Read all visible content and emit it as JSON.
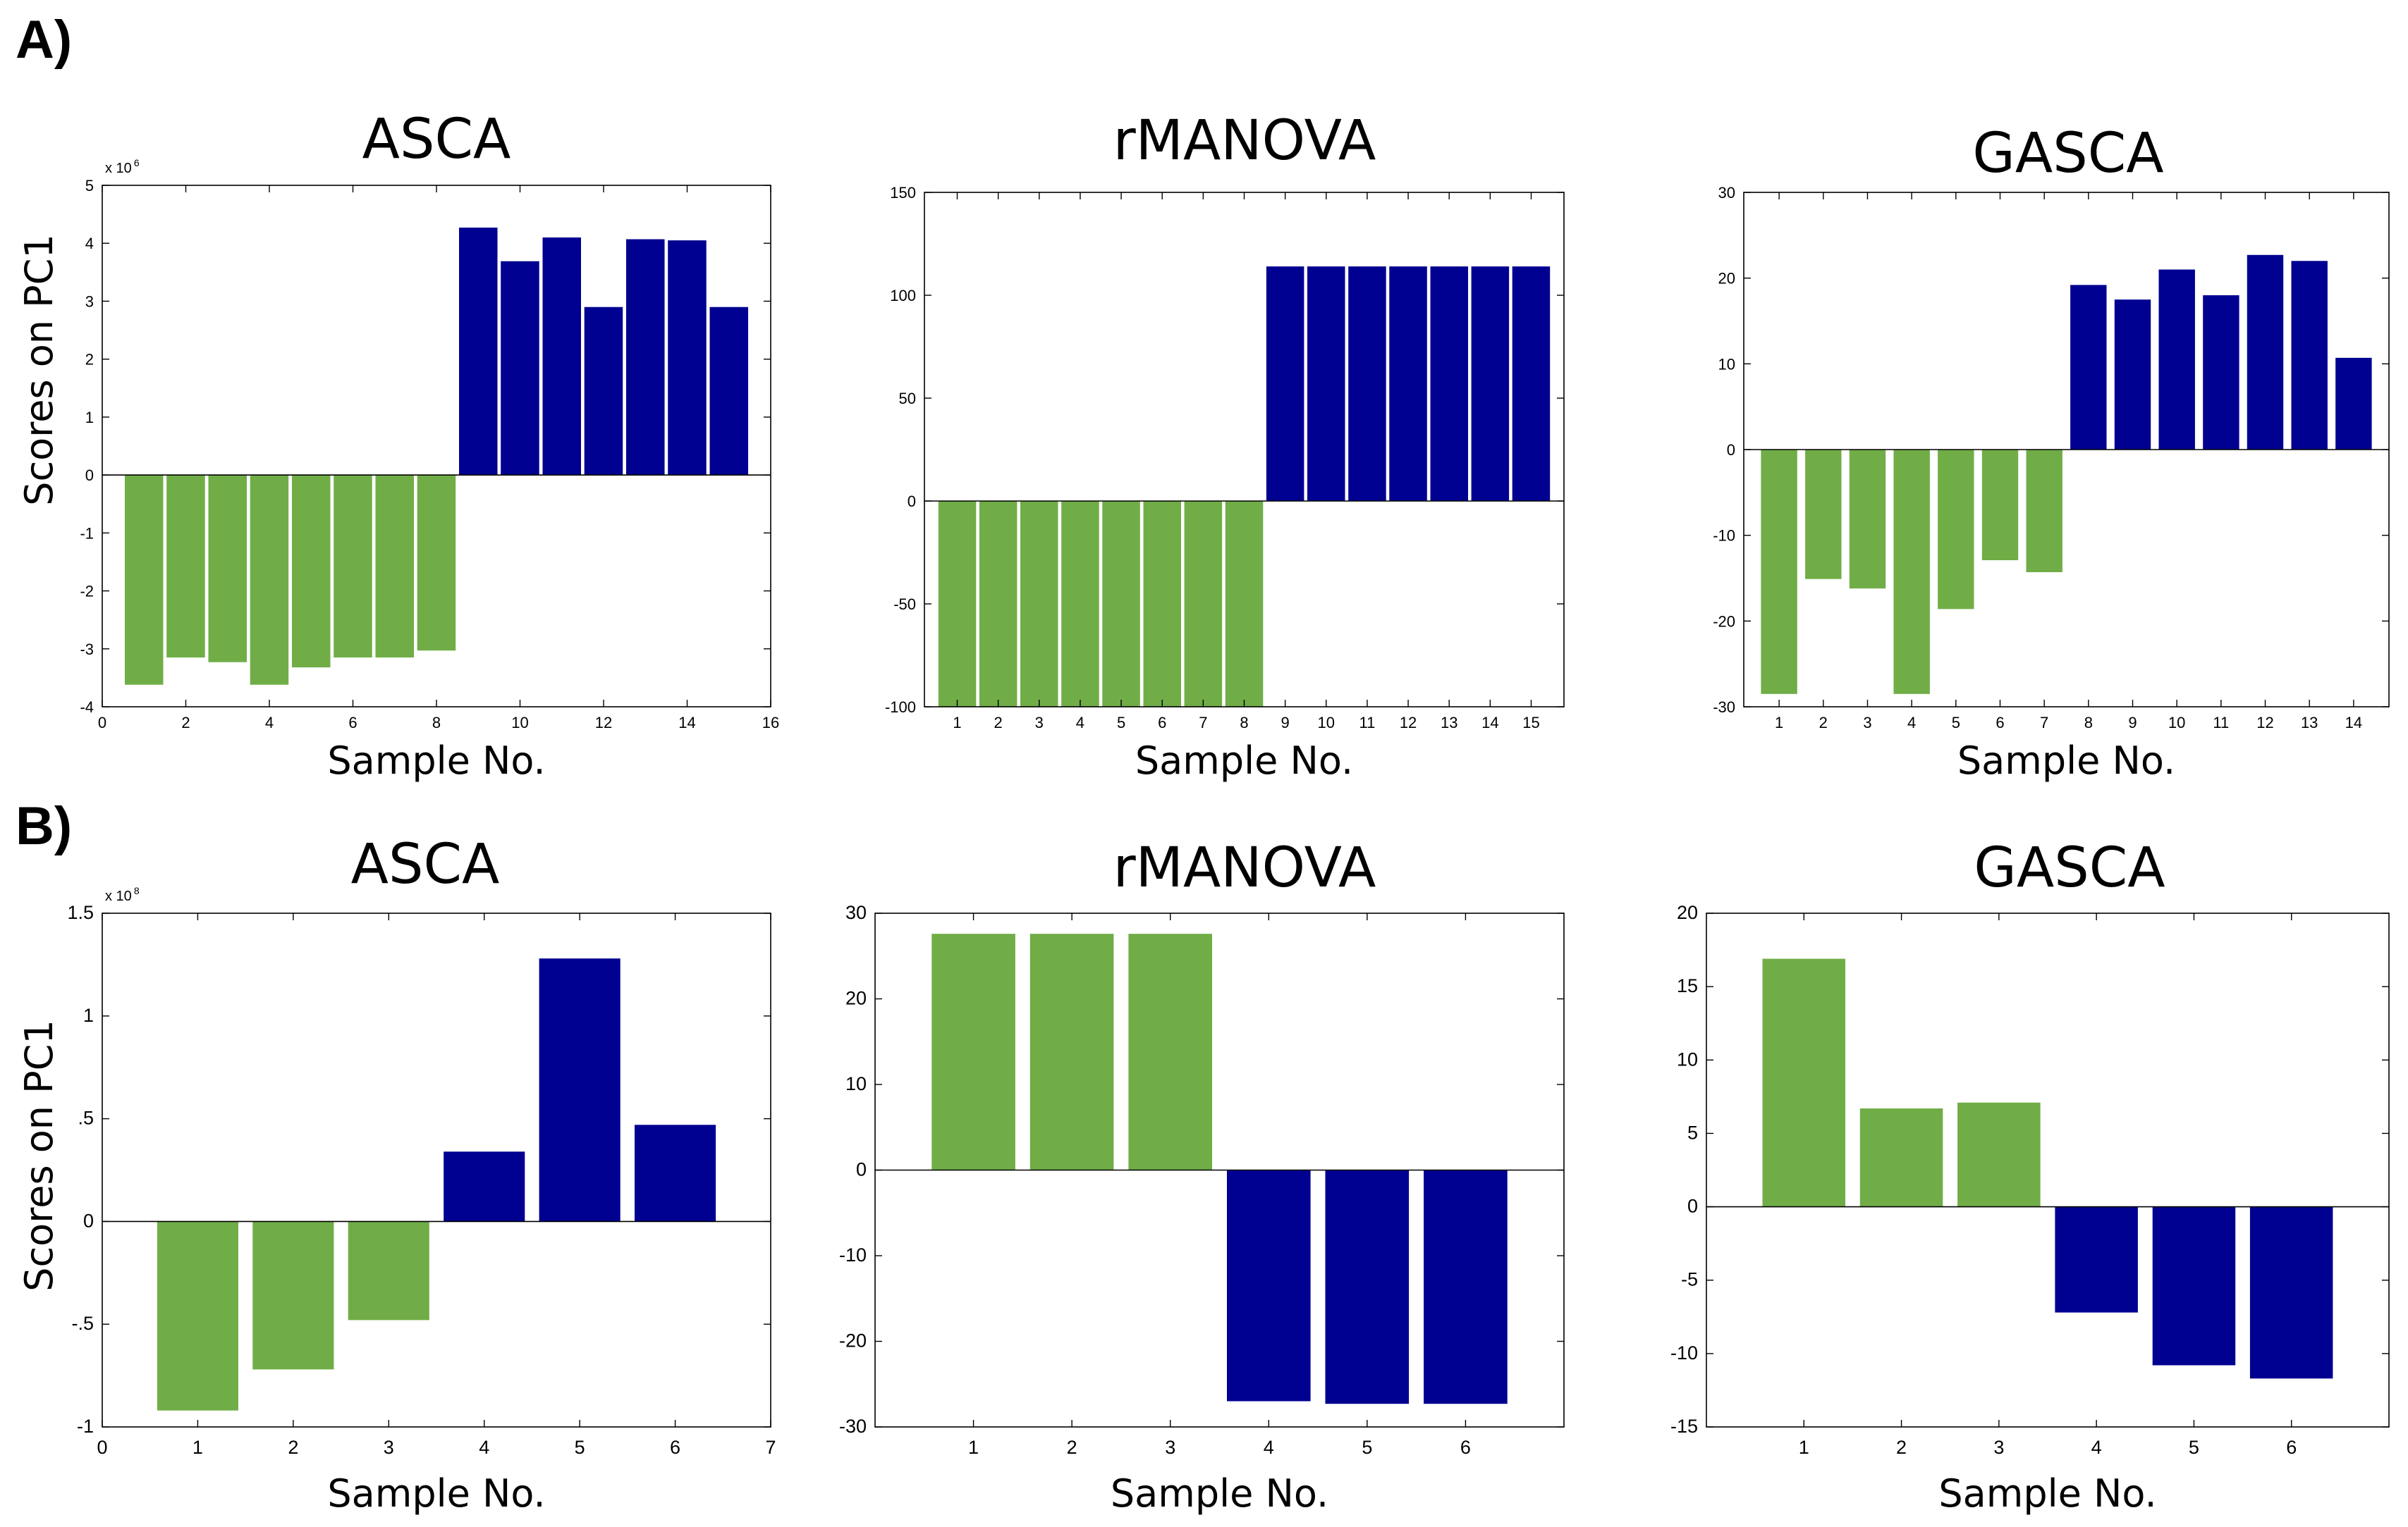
{
  "figure": {
    "panels": [
      {
        "label": "A)"
      },
      {
        "label": "B)"
      }
    ]
  },
  "colors": {
    "group1": "#70ad47",
    "group2": "#000091",
    "axis": "#000000"
  },
  "chart_data": [
    {
      "type": "bar",
      "panel": "A)",
      "title": "ASCA",
      "xlabel": "Sample No.",
      "ylabel": "Scores on PC1",
      "y_multiplier": "x 10",
      "y_multiplier_exp": "6",
      "xlim": [
        0,
        16
      ],
      "ylim": [
        -4,
        5
      ],
      "xticks": [
        0,
        2,
        4,
        6,
        8,
        10,
        12,
        14,
        16
      ],
      "yticks": [
        -4,
        -3,
        -2,
        -1,
        0,
        1,
        2,
        3,
        4,
        5
      ],
      "x": [
        1,
        2,
        3,
        4,
        5,
        6,
        7,
        8,
        9,
        10,
        11,
        12,
        13,
        14,
        15
      ],
      "values": [
        -3.62,
        -3.15,
        -3.23,
        -3.62,
        -3.32,
        -3.15,
        -3.15,
        -3.03,
        4.27,
        3.69,
        4.1,
        2.9,
        4.07,
        4.05,
        2.9
      ],
      "groups": [
        1,
        1,
        1,
        1,
        1,
        1,
        1,
        1,
        2,
        2,
        2,
        2,
        2,
        2,
        2
      ]
    },
    {
      "type": "bar",
      "panel": "A)",
      "title": "rMANOVA",
      "xlabel": "Sample No.",
      "ylabel": "",
      "xlim": [
        0.2,
        15.8
      ],
      "ylim": [
        -100,
        150
      ],
      "xticks": [
        1,
        2,
        3,
        4,
        5,
        6,
        7,
        8,
        9,
        10,
        11,
        12,
        13,
        14,
        15
      ],
      "yticks": [
        -100,
        -50,
        0,
        50,
        100,
        150
      ],
      "x": [
        1,
        2,
        3,
        4,
        5,
        6,
        7,
        8,
        9,
        10,
        11,
        12,
        13,
        14,
        15
      ],
      "values": [
        -100,
        -100,
        -100,
        -100,
        -100,
        -100,
        -100,
        -100,
        114,
        114,
        114,
        114,
        114,
        114,
        114
      ],
      "groups": [
        1,
        1,
        1,
        1,
        1,
        1,
        1,
        1,
        2,
        2,
        2,
        2,
        2,
        2,
        2
      ]
    },
    {
      "type": "bar",
      "panel": "A)",
      "title": "GASCA",
      "xlabel": "Sample No.",
      "ylabel": "",
      "xlim": [
        0.2,
        14.8
      ],
      "ylim": [
        -30,
        30
      ],
      "xticks": [
        1,
        2,
        3,
        4,
        5,
        6,
        7,
        8,
        9,
        10,
        11,
        12,
        13,
        14
      ],
      "yticks": [
        -30,
        -20,
        -10,
        0,
        10,
        20,
        30
      ],
      "x": [
        1,
        2,
        3,
        4,
        5,
        6,
        7,
        8,
        9,
        10,
        11,
        12,
        13,
        14
      ],
      "values": [
        -28.5,
        -15.1,
        -16.2,
        -28.5,
        -18.6,
        -12.9,
        -14.3,
        19.2,
        17.5,
        21.0,
        18.0,
        22.7,
        22.0,
        10.7
      ],
      "groups": [
        1,
        1,
        1,
        1,
        1,
        1,
        1,
        2,
        2,
        2,
        2,
        2,
        2,
        2
      ]
    },
    {
      "type": "bar",
      "panel": "B)",
      "title": "ASCA",
      "xlabel": "Sample No.",
      "ylabel": "Scores on PC1",
      "y_multiplier": "x 10",
      "y_multiplier_exp": "8",
      "xlim": [
        0,
        7
      ],
      "ylim": [
        -1,
        1.5
      ],
      "xticks": [
        0,
        1,
        2,
        3,
        4,
        5,
        6,
        7
      ],
      "ytick_values": [
        -1,
        -0.5,
        0,
        0.5,
        1,
        1.5
      ],
      "ytick_labels": [
        "-1",
        "-.5",
        "0",
        ".5",
        "1",
        "1.5"
      ],
      "x": [
        1,
        2,
        3,
        4,
        5,
        6
      ],
      "values": [
        -0.92,
        -0.72,
        -0.48,
        0.34,
        1.28,
        0.47
      ],
      "groups": [
        1,
        1,
        1,
        2,
        2,
        2
      ]
    },
    {
      "type": "bar",
      "panel": "B)",
      "title": "rMANOVA",
      "xlabel": "Sample No.",
      "ylabel": "",
      "xlim": [
        0,
        7
      ],
      "ylim": [
        -30,
        30
      ],
      "xticks": [
        1,
        2,
        3,
        4,
        5,
        6
      ],
      "yticks": [
        -30,
        -20,
        -10,
        0,
        10,
        20,
        30
      ],
      "x": [
        1,
        2,
        3,
        4,
        5,
        6
      ],
      "values": [
        27.6,
        27.6,
        27.6,
        -27.0,
        -27.3,
        -27.3
      ],
      "groups": [
        1,
        1,
        1,
        2,
        2,
        2
      ]
    },
    {
      "type": "bar",
      "panel": "B)",
      "title": "GASCA",
      "xlabel": "Sample No.",
      "ylabel": "",
      "xlim": [
        0,
        7
      ],
      "ylim": [
        -15,
        20
      ],
      "xticks": [
        1,
        2,
        3,
        4,
        5,
        6
      ],
      "yticks": [
        -15,
        -10,
        -5,
        0,
        5,
        10,
        15,
        20
      ],
      "x": [
        1,
        2,
        3,
        4,
        5,
        6
      ],
      "values": [
        16.9,
        6.7,
        7.1,
        -7.2,
        -10.8,
        -11.7
      ],
      "groups": [
        1,
        1,
        1,
        2,
        2,
        2
      ]
    }
  ]
}
